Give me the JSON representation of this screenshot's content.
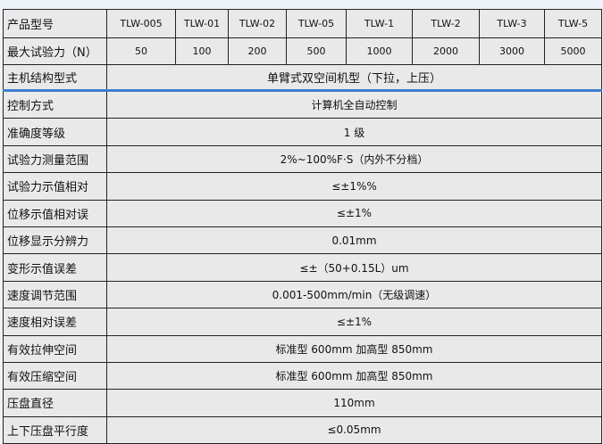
{
  "header": {
    "label": "产品型号",
    "models": [
      "TLW-005",
      "TLW-01",
      "TLW-02",
      "TLW-05",
      "TLW-1",
      "TLW-2",
      "TLW-3",
      "TLW-5"
    ]
  },
  "max_force": {
    "label": "最大试验力（N）",
    "values": [
      "50",
      "100",
      "200",
      "500",
      "1000",
      "2000",
      "3000",
      "5000"
    ]
  },
  "structure": {
    "label": "主机结构型式",
    "value": "单臂式双空间机型（下拉，上压）"
  },
  "specs": [
    {
      "label": "控制方式",
      "value": "计算机全自动控制"
    },
    {
      "label": "准确度等级",
      "value": "1 级"
    },
    {
      "label": "试验力测量范围",
      "value": "2%~100%F·S（内外不分档）"
    },
    {
      "label": "试验力示值相对",
      "value": "≤±1%%"
    },
    {
      "label": "位移示值相对误",
      "value": "≤±1%"
    },
    {
      "label": "位移显示分辨力",
      "value": "0.01mm"
    },
    {
      "label": "变形示值误差",
      "value": "≤±（50+0.15L）um"
    },
    {
      "label": "速度调节范围",
      "value": "0.001-500mm/min（无级调速）"
    },
    {
      "label": "速度相对误差",
      "value": "≤±1%"
    },
    {
      "label": "有效拉伸空间",
      "value": "标准型 600mm 加高型 850mm"
    },
    {
      "label": "有效压缩空间",
      "value": "标准型 600mm 加高型 850mm"
    },
    {
      "label": "压盘直径",
      "value": "110mm"
    },
    {
      "label": "上下压盘平行度",
      "value": "≤0.05mm"
    }
  ],
  "colors": {
    "accent_line": "#3d7fd0",
    "cell_bg": "#e9e9e9",
    "page_bg": "#eef3fa"
  }
}
